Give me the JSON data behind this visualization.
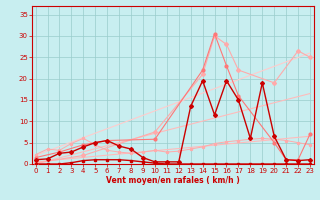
{
  "xlabel": "Vent moyen/en rafales ( km/h )",
  "xlim": [
    -0.3,
    23.3
  ],
  "ylim": [
    0,
    37
  ],
  "yticks": [
    0,
    5,
    10,
    15,
    20,
    25,
    30,
    35
  ],
  "xticks": [
    0,
    1,
    2,
    3,
    4,
    5,
    6,
    7,
    8,
    9,
    10,
    11,
    12,
    13,
    14,
    15,
    16,
    17,
    18,
    19,
    20,
    21,
    22,
    23
  ],
  "bg_color": "#c8eef0",
  "grid_color": "#99cccc",
  "trend1_x": [
    0,
    23
  ],
  "trend1_y": [
    0.5,
    6.5
  ],
  "trend1_color": "#ffbbbb",
  "trend2_x": [
    0,
    23
  ],
  "trend2_y": [
    0.0,
    16.5
  ],
  "trend2_color": "#ffbbbb",
  "trend3_x": [
    0,
    23
  ],
  "trend3_y": [
    2.0,
    26.0
  ],
  "trend3_color": "#ffcccc",
  "lpink_x": [
    0,
    1,
    2,
    3,
    4,
    5,
    6,
    7,
    8,
    9,
    10,
    11,
    12,
    13,
    14,
    15,
    16,
    17,
    18,
    19,
    20,
    21,
    22,
    23
  ],
  "lpink_y": [
    2.2,
    3.5,
    3.2,
    4.8,
    6.0,
    4.5,
    3.2,
    2.8,
    2.5,
    2.8,
    3.2,
    2.8,
    3.0,
    3.5,
    4.0,
    4.8,
    5.2,
    5.5,
    5.8,
    6.0,
    5.8,
    5.5,
    5.0,
    4.5
  ],
  "lpink_color": "#ffaaaa",
  "peak1_x": [
    0,
    1,
    2,
    3,
    4,
    5,
    6,
    7,
    8,
    9,
    10,
    11,
    12,
    13,
    14,
    15,
    16,
    17,
    18,
    19,
    20,
    21,
    22,
    23
  ],
  "peak1_y": [
    1.0,
    1.2,
    2.5,
    2.8,
    4.0,
    5.0,
    5.5,
    4.2,
    3.5,
    1.5,
    0.5,
    0.5,
    0.5,
    13.5,
    19.5,
    11.5,
    19.5,
    15.0,
    6.0,
    19.0,
    6.5,
    1.0,
    0.8,
    1.0
  ],
  "peak1_color": "#cc0000",
  "peak2_x": [
    0,
    2,
    4,
    6,
    10,
    14,
    15,
    16,
    17,
    20,
    21,
    22,
    23
  ],
  "peak2_y": [
    1.5,
    2.8,
    4.5,
    5.5,
    5.8,
    22.0,
    30.5,
    23.0,
    16.0,
    5.0,
    1.0,
    1.0,
    7.0
  ],
  "peak2_color": "#ff7777",
  "peak3_x": [
    0,
    4,
    10,
    14,
    15,
    16,
    17,
    20,
    22,
    23
  ],
  "peak3_y": [
    0.2,
    2.0,
    7.5,
    21.0,
    30.0,
    28.0,
    22.0,
    19.0,
    26.5,
    25.0
  ],
  "peak3_color": "#ffaaaa",
  "flat_x": [
    0,
    1,
    2,
    3,
    4,
    5,
    6,
    7,
    8,
    9,
    10,
    11,
    12,
    13,
    14,
    15,
    16,
    17,
    18,
    19,
    20,
    21,
    22,
    23
  ],
  "flat_y": [
    0,
    0,
    0,
    0.3,
    0.8,
    1.0,
    1.0,
    1.0,
    0.8,
    0.5,
    0.2,
    0,
    0,
    0,
    0,
    0,
    0,
    0,
    0,
    0,
    0,
    0,
    0,
    0
  ],
  "flat_color": "#cc0000"
}
